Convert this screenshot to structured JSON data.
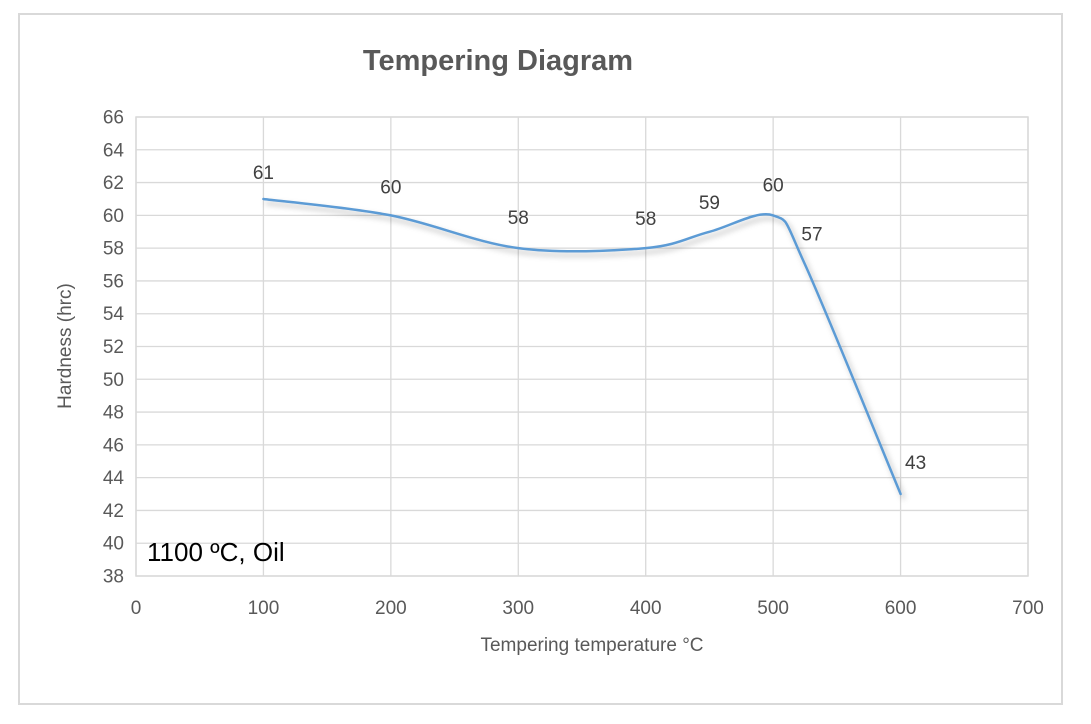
{
  "chart_data": {
    "type": "line",
    "title": "Tempering Diagram",
    "xlabel": "Tempering temperature °C",
    "ylabel": "Hardness (hrc)",
    "annotation": "1100 ºC, Oil",
    "x": [
      100,
      200,
      300,
      400,
      450,
      500,
      525,
      600
    ],
    "series": [
      {
        "name": "Hardness",
        "values": [
          61,
          60,
          58,
          58,
          59,
          60,
          57,
          43
        ]
      }
    ],
    "data_labels": [
      "61",
      "60",
      "58",
      "58",
      "59",
      "60",
      "57",
      "43"
    ],
    "xlim": [
      0,
      700
    ],
    "ylim": [
      38,
      66
    ],
    "x_ticks": [
      0,
      100,
      200,
      300,
      400,
      500,
      600,
      700
    ],
    "y_ticks": [
      38,
      40,
      42,
      44,
      46,
      48,
      50,
      52,
      54,
      56,
      58,
      60,
      62,
      64,
      66
    ],
    "grid": true,
    "smooth": true,
    "legend": "none"
  },
  "colors": {
    "line": "#5B9BD5",
    "grid": "#D9D9D9",
    "plot_border": "#D9D9D9",
    "tick_text": "#595959",
    "title_text": "#595959",
    "data_label_text": "#404040",
    "annotation_text": "#000000",
    "background": "#FFFFFF"
  }
}
